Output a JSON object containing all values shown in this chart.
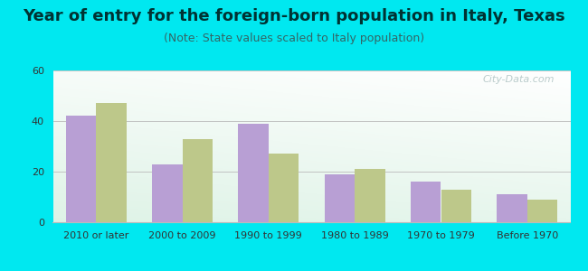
{
  "title": "Year of entry for the foreign-born population in Italy, Texas",
  "subtitle": "(Note: State values scaled to Italy population)",
  "categories": [
    "2010 or later",
    "2000 to 2009",
    "1990 to 1999",
    "1980 to 1989",
    "1970 to 1979",
    "Before 1970"
  ],
  "italy_values": [
    42,
    23,
    39,
    19,
    16,
    11
  ],
  "texas_values": [
    47,
    33,
    27,
    21,
    13,
    9
  ],
  "italy_color": "#b89fd4",
  "texas_color": "#bdc88a",
  "background_color": "#00e8f0",
  "plot_bg_topleft": "#d6f0e0",
  "plot_bg_topright": "#ffffff",
  "plot_bg_bottom": "#d6f0e0",
  "ylim": [
    0,
    60
  ],
  "yticks": [
    0,
    20,
    40,
    60
  ],
  "bar_width": 0.35,
  "title_fontsize": 13,
  "subtitle_fontsize": 9,
  "legend_fontsize": 10,
  "tick_fontsize": 8
}
